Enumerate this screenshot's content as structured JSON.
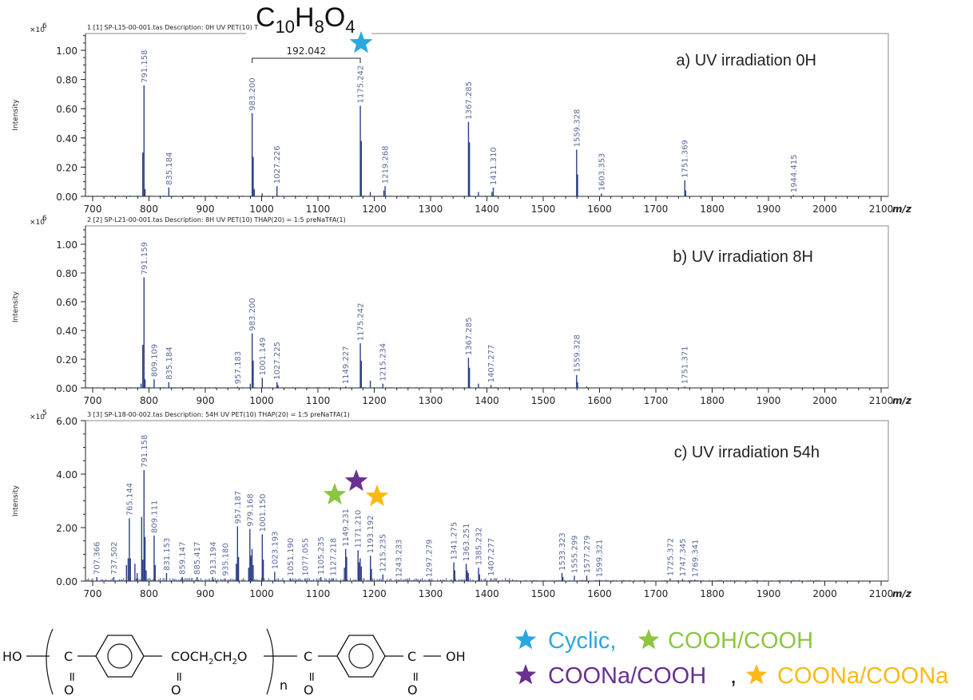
{
  "chart_data": [
    {
      "type": "bar",
      "id": "a",
      "title": "a) UV irradiation 0H",
      "file_caption": "1 [1] SP-L15-00-001.tas   Description: 0H UV PET(10) T",
      "xlabel": "m/z",
      "ylabel": "Intensity",
      "y_scale_label": "×10",
      "y_scale_exp": "6",
      "xlim": [
        686,
        2110
      ],
      "ylim": [
        0,
        1.12
      ],
      "x_ticks": [
        "700",
        "800",
        "900",
        "1000",
        "1100",
        "1200",
        "1300",
        "1400",
        "1500",
        "1600",
        "1700",
        "1800",
        "1900",
        "2000",
        "2100"
      ],
      "y_ticks": [
        "0.00",
        "0.20",
        "0.40",
        "0.60",
        "0.80",
        "1.00"
      ],
      "peaks": [
        {
          "mz": 791.158,
          "label": "791.158",
          "intensity": 0.76
        },
        {
          "mz": 835.184,
          "label": "835.184",
          "intensity": 0.06
        },
        {
          "mz": 983.2,
          "label": "983.200",
          "intensity": 0.57
        },
        {
          "mz": 1027.226,
          "label": "1027.226",
          "intensity": 0.07
        },
        {
          "mz": 1175.242,
          "label": "1175.242",
          "intensity": 0.62
        },
        {
          "mz": 1219.268,
          "label": "1219.268",
          "intensity": 0.07
        },
        {
          "mz": 1367.285,
          "label": "1367.285",
          "intensity": 0.51
        },
        {
          "mz": 1411.31,
          "label": "1411.310",
          "intensity": 0.06
        },
        {
          "mz": 1559.328,
          "label": "1559.328",
          "intensity": 0.32
        },
        {
          "mz": 1603.353,
          "label": "1603.353",
          "intensity": 0.02
        },
        {
          "mz": 1751.369,
          "label": "1751.369",
          "intensity": 0.11
        },
        {
          "mz": 1944.415,
          "label": "1944.415",
          "intensity": 0.01
        }
      ],
      "minor_peaks": [
        {
          "mz": 789,
          "intensity": 0.3
        },
        {
          "mz": 793,
          "intensity": 0.05
        },
        {
          "mz": 985,
          "intensity": 0.27
        },
        {
          "mz": 987,
          "intensity": 0.05
        },
        {
          "mz": 1177,
          "intensity": 0.38
        },
        {
          "mz": 1176,
          "intensity": 0.25
        },
        {
          "mz": 1369,
          "intensity": 0.37
        },
        {
          "mz": 1561,
          "intensity": 0.15
        },
        {
          "mz": 1753,
          "intensity": 0.04
        },
        {
          "mz": 1217,
          "intensity": 0.04
        },
        {
          "mz": 1409,
          "intensity": 0.03
        },
        {
          "mz": 1193,
          "intensity": 0.03
        },
        {
          "mz": 1385,
          "intensity": 0.03
        },
        {
          "mz": 1001,
          "intensity": 0.02
        }
      ],
      "annotation": {
        "from_mz": 983.2,
        "to_mz": 1175.242,
        "label": "192.042"
      },
      "formula": {
        "C": "C",
        "c_sub": "10",
        "H": "H",
        "h_sub": "8",
        "O": "O",
        "o_sub": "4"
      },
      "markers": [
        {
          "mz": 1175.242,
          "color": "#29a8e0",
          "kind": "cyclic"
        }
      ]
    },
    {
      "type": "bar",
      "id": "b",
      "title": "b) UV irradiation 8H",
      "file_caption": "2 [2] SP-L21-00-001.tas   Description: 8H UV PET(10) THAP(20) = 1:5 preNaTFA(1)",
      "xlabel": "m/z",
      "ylabel": "Intensity",
      "y_scale_label": "×10",
      "y_scale_exp": "6",
      "xlim": [
        686,
        2110
      ],
      "ylim": [
        0,
        1.12
      ],
      "x_ticks": [
        "700",
        "800",
        "900",
        "1000",
        "1100",
        "1200",
        "1300",
        "1400",
        "1500",
        "1600",
        "1700",
        "1800",
        "1900",
        "2000",
        "2100"
      ],
      "y_ticks": [
        "0.00",
        "0.20",
        "0.40",
        "0.60",
        "0.80",
        "1.00"
      ],
      "peaks": [
        {
          "mz": 791.159,
          "label": "791.159",
          "intensity": 0.77
        },
        {
          "mz": 809.109,
          "label": "809.109",
          "intensity": 0.06
        },
        {
          "mz": 835.184,
          "label": "835.184",
          "intensity": 0.04
        },
        {
          "mz": 957.183,
          "label": "957.183",
          "intensity": 0.01
        },
        {
          "mz": 983.2,
          "label": "983.200",
          "intensity": 0.38
        },
        {
          "mz": 1001.149,
          "label": "1001.149",
          "intensity": 0.07
        },
        {
          "mz": 1027.225,
          "label": "1027.225",
          "intensity": 0.04
        },
        {
          "mz": 1149.227,
          "label": "1149.227",
          "intensity": 0.01
        },
        {
          "mz": 1175.242,
          "label": "1175.242",
          "intensity": 0.31
        },
        {
          "mz": 1215.234,
          "label": "1215.234",
          "intensity": 0.03
        },
        {
          "mz": 1367.285,
          "label": "1367.285",
          "intensity": 0.21
        },
        {
          "mz": 1407.277,
          "label": "1407.277",
          "intensity": 0.02
        },
        {
          "mz": 1559.328,
          "label": "1559.328",
          "intensity": 0.09
        },
        {
          "mz": 1751.371,
          "label": "1751.371",
          "intensity": 0.01
        }
      ],
      "minor_peaks": [
        {
          "mz": 789,
          "intensity": 0.3
        },
        {
          "mz": 793,
          "intensity": 0.06
        },
        {
          "mz": 786,
          "intensity": 0.03
        },
        {
          "mz": 985,
          "intensity": 0.19
        },
        {
          "mz": 980,
          "intensity": 0.03
        },
        {
          "mz": 1177,
          "intensity": 0.19
        },
        {
          "mz": 1176,
          "intensity": 0.16
        },
        {
          "mz": 1193,
          "intensity": 0.05
        },
        {
          "mz": 1369,
          "intensity": 0.14
        },
        {
          "mz": 1385,
          "intensity": 0.03
        },
        {
          "mz": 1561,
          "intensity": 0.04
        },
        {
          "mz": 1577,
          "intensity": 0.01
        },
        {
          "mz": 1029,
          "intensity": 0.02
        }
      ],
      "markers": []
    },
    {
      "type": "bar",
      "id": "c",
      "title": "c) UV irradiation 54h",
      "file_caption": "3 [3] SP-L18-00-002.tas   Description: 54H UV PET(10) THAP(20) = 1:5 preNaTFA(1)",
      "xlabel": "m/z",
      "ylabel": "Intensity",
      "y_scale_label": "×10",
      "y_scale_exp": "5",
      "xlim": [
        686,
        2110
      ],
      "ylim": [
        0,
        6.0
      ],
      "x_ticks": [
        "700",
        "800",
        "900",
        "1000",
        "1100",
        "1200",
        "1300",
        "1400",
        "1500",
        "1600",
        "1700",
        "1800",
        "1900",
        "2000",
        "2100"
      ],
      "y_ticks": [
        "0.00",
        "2.00",
        "4.00",
        "6.00"
      ],
      "peaks": [
        {
          "mz": 707.366,
          "label": "707.366",
          "intensity": 0.15
        },
        {
          "mz": 737.502,
          "label": "737.502",
          "intensity": 0.15
        },
        {
          "mz": 765.144,
          "label": "765.144",
          "intensity": 2.35
        },
        {
          "mz": 791.158,
          "label": "791.158",
          "intensity": 4.15
        },
        {
          "mz": 809.111,
          "label": "809.111",
          "intensity": 1.7
        },
        {
          "mz": 831.153,
          "label": "831.153",
          "intensity": 0.3
        },
        {
          "mz": 859.147,
          "label": "859.147",
          "intensity": 0.15
        },
        {
          "mz": 885.417,
          "label": "885.417",
          "intensity": 0.15
        },
        {
          "mz": 913.194,
          "label": "913.194",
          "intensity": 0.15
        },
        {
          "mz": 935.18,
          "label": "935.180",
          "intensity": 0.1
        },
        {
          "mz": 957.187,
          "label": "957.187",
          "intensity": 2.05
        },
        {
          "mz": 979.168,
          "label": "979.168",
          "intensity": 1.95
        },
        {
          "mz": 1001.15,
          "label": "1001.150",
          "intensity": 1.75
        },
        {
          "mz": 1023.193,
          "label": "1023.193",
          "intensity": 0.35
        },
        {
          "mz": 1051.19,
          "label": "1051.190",
          "intensity": 0.1
        },
        {
          "mz": 1077.055,
          "label": "1077.055",
          "intensity": 0.1
        },
        {
          "mz": 1105.235,
          "label": "1105.235",
          "intensity": 0.15
        },
        {
          "mz": 1127.218,
          "label": "1127.218",
          "intensity": 0.1
        },
        {
          "mz": 1149.231,
          "label": "1149.231",
          "intensity": 1.2
        },
        {
          "mz": 1171.21,
          "label": "1171.210",
          "intensity": 1.15
        },
        {
          "mz": 1193.192,
          "label": "1193.192",
          "intensity": 0.95
        },
        {
          "mz": 1215.235,
          "label": "1215.235",
          "intensity": 0.25
        },
        {
          "mz": 1243.233,
          "label": "1243.233",
          "intensity": 0.05
        },
        {
          "mz": 1297.279,
          "label": "1297.279",
          "intensity": 0.05
        },
        {
          "mz": 1341.275,
          "label": "1341.275",
          "intensity": 0.7
        },
        {
          "mz": 1363.251,
          "label": "1363.251",
          "intensity": 0.65
        },
        {
          "mz": 1385.232,
          "label": "1385.232",
          "intensity": 0.5
        },
        {
          "mz": 1407.277,
          "label": "1407.277",
          "intensity": 0.1
        },
        {
          "mz": 1533.323,
          "label": "1533.323",
          "intensity": 0.3
        },
        {
          "mz": 1555.299,
          "label": "1555.299",
          "intensity": 0.2
        },
        {
          "mz": 1577.279,
          "label": "1577.279",
          "intensity": 0.2
        },
        {
          "mz": 1599.321,
          "label": "1599.321",
          "intensity": 0.05
        },
        {
          "mz": 1725.372,
          "label": "1725.372",
          "intensity": 0.1
        },
        {
          "mz": 1747.345,
          "label": "1747.345",
          "intensity": 0.08
        },
        {
          "mz": 1769.341,
          "label": "1769.341",
          "intensity": 0.05
        }
      ],
      "minor_peaks": [
        {
          "mz": 787,
          "intensity": 2.4
        },
        {
          "mz": 789,
          "intensity": 0.8
        },
        {
          "mz": 793,
          "intensity": 1.65
        },
        {
          "mz": 795,
          "intensity": 0.4
        },
        {
          "mz": 763,
          "intensity": 0.85
        },
        {
          "mz": 767,
          "intensity": 0.85
        },
        {
          "mz": 760,
          "intensity": 0.6
        },
        {
          "mz": 775,
          "intensity": 0.65
        },
        {
          "mz": 779,
          "intensity": 0.3
        },
        {
          "mz": 811,
          "intensity": 0.6
        },
        {
          "mz": 955,
          "intensity": 0.65
        },
        {
          "mz": 959,
          "intensity": 0.9
        },
        {
          "mz": 977,
          "intensity": 0.5
        },
        {
          "mz": 981,
          "intensity": 0.95
        },
        {
          "mz": 983,
          "intensity": 1.2
        },
        {
          "mz": 985,
          "intensity": 0.6
        },
        {
          "mz": 1003,
          "intensity": 0.8
        },
        {
          "mz": 1151,
          "intensity": 0.9
        },
        {
          "mz": 1147,
          "intensity": 0.5
        },
        {
          "mz": 1173,
          "intensity": 0.7
        },
        {
          "mz": 1175,
          "intensity": 0.85
        },
        {
          "mz": 1177,
          "intensity": 0.55
        },
        {
          "mz": 1195,
          "intensity": 0.45
        },
        {
          "mz": 1343,
          "intensity": 0.4
        },
        {
          "mz": 1365,
          "intensity": 0.4
        },
        {
          "mz": 1367,
          "intensity": 0.3
        },
        {
          "mz": 1387,
          "intensity": 0.25
        },
        {
          "mz": 1535,
          "intensity": 0.15
        }
      ],
      "markers": [
        {
          "mz": 1149.231,
          "color": "#8dc63f",
          "kind": "cooh-cooh"
        },
        {
          "mz": 1171.21,
          "color": "#6a3092",
          "kind": "coona-cooh"
        },
        {
          "mz": 1193.192,
          "color": "#fbb917",
          "kind": "coona-coona"
        }
      ]
    }
  ],
  "legend": {
    "items": [
      {
        "label": "Cyclic,",
        "color": "#29a8e0"
      },
      {
        "label": "COOH/COOH",
        "color": "#8dc63f"
      },
      {
        "label": "COONa/COOH",
        "color": "#6a3092"
      },
      {
        "label": "COONa/COONa",
        "color": "#fbb917"
      }
    ],
    "separator": ","
  },
  "structure": {
    "ho": "HO",
    "c1": "C",
    "o1": "O",
    "ester": "COCH",
    "sub2a": "2",
    "ch": "CH",
    "sub2b": "2",
    "o_link": "O",
    "o2": "O",
    "n": "n",
    "c3": "C",
    "o3": "O",
    "c4": "C",
    "o4": "O",
    "oh": "OH",
    "dbl": "="
  },
  "colors": {
    "peak": "#2b3f86",
    "peak_label": "#5b6b9a",
    "frame": "#888888"
  }
}
